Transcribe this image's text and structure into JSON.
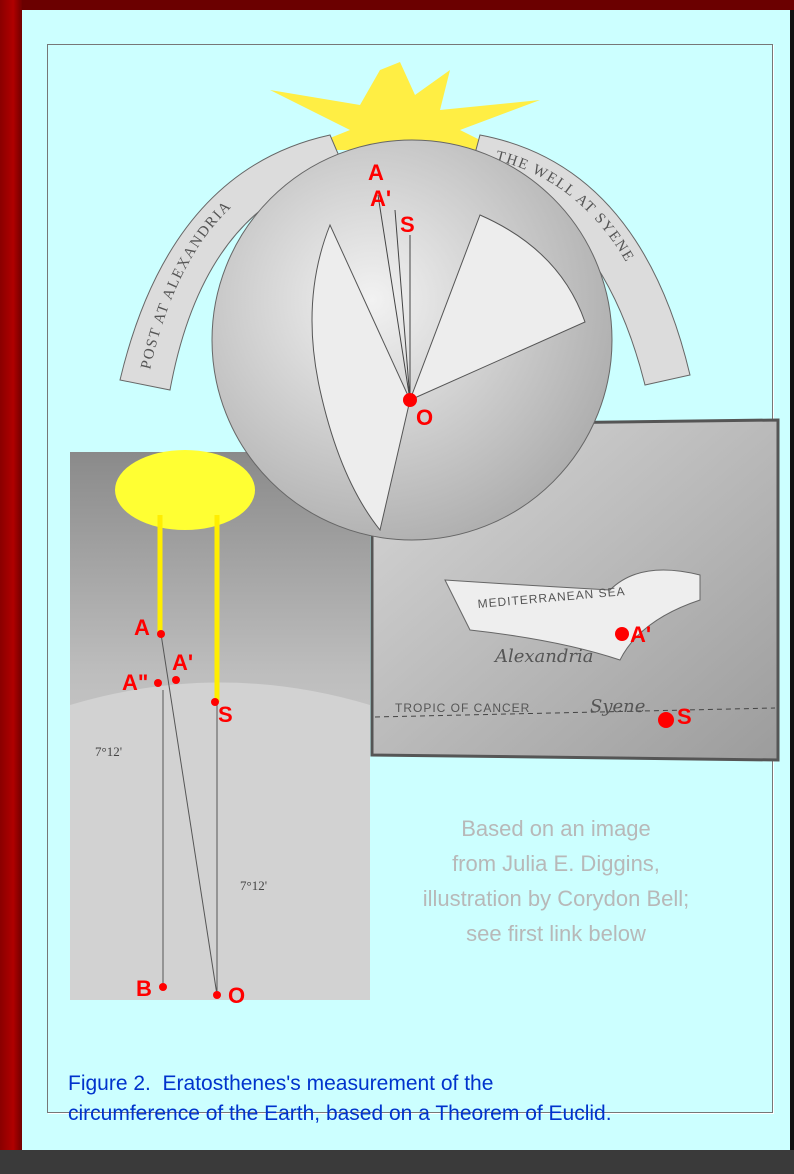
{
  "figure": {
    "globe": {
      "banner_left": "POST AT ALEXANDRIA",
      "banner_right": "THE WELL AT SYENE",
      "labels": [
        "A",
        "A'",
        "S",
        "O"
      ]
    },
    "map": {
      "sea": "MEDITERRANEAN SEA",
      "city1": "Alexandria",
      "tropic": "TROPIC OF CANCER",
      "city2": "Syene",
      "labels": [
        "A'",
        "S"
      ]
    },
    "cross_section": {
      "labels": [
        "A",
        "A\"",
        "A'",
        "S",
        "B",
        "O"
      ],
      "angles": [
        "7°12'",
        "7°12'"
      ]
    },
    "credit": [
      "Based on an image",
      "from Julia E. Diggins,",
      "illustration by Corydon Bell;",
      "see first link below"
    ],
    "caption": [
      "Figure 2.  Eratosthenes's measurement of the",
      "circumference of the Earth, based on a Theorem of Euclid."
    ]
  }
}
